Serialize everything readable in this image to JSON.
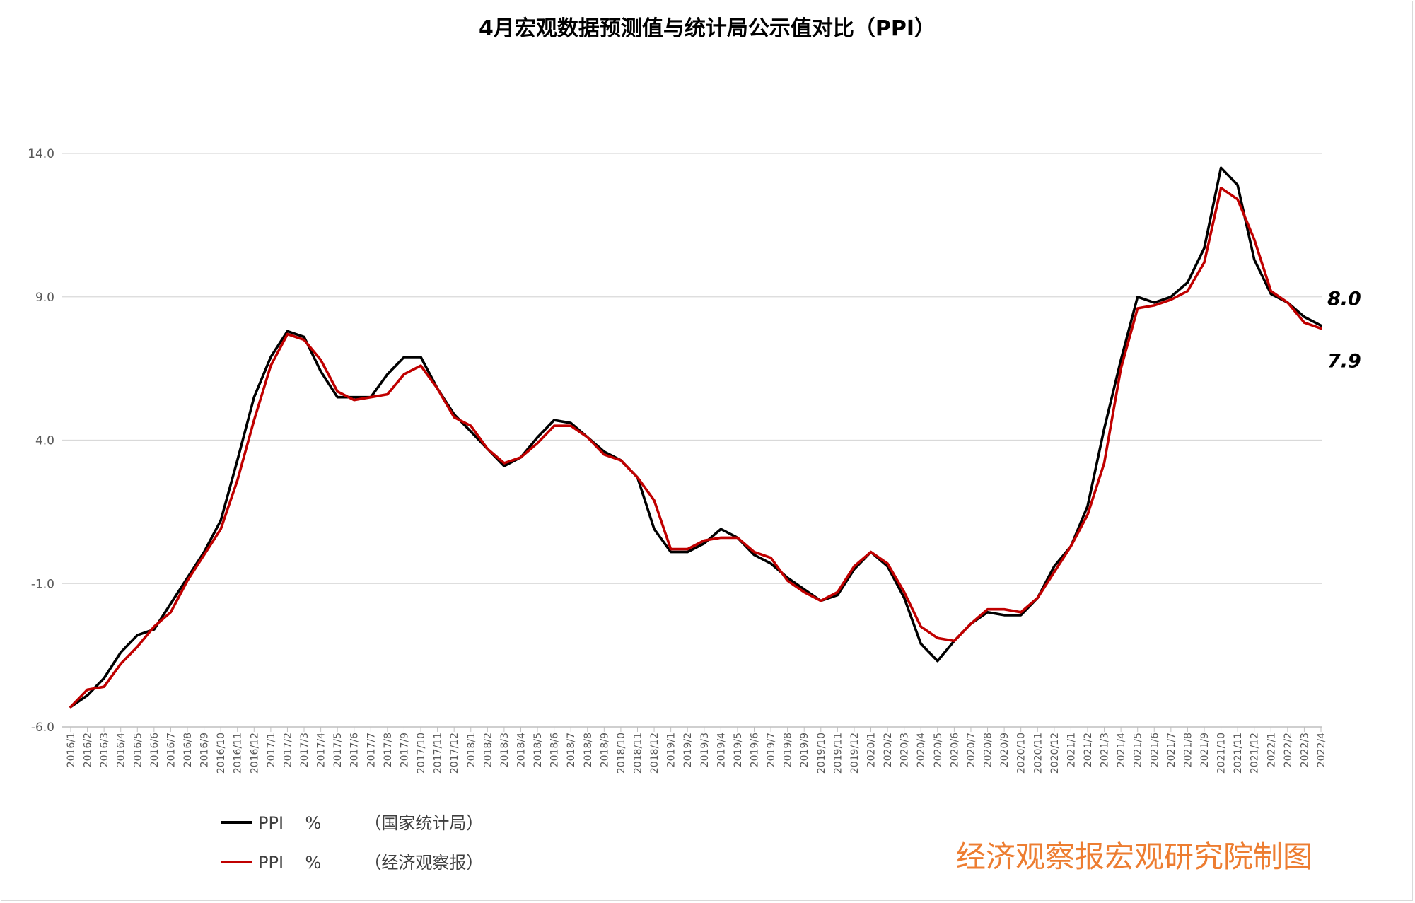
{
  "chart_data": {
    "type": "line",
    "title": "4月宏观数据预测值与统计局公示值对比（PPI）",
    "ylim": [
      -6,
      14
    ],
    "yticks": [
      "14.0",
      "9.0",
      "4.0",
      "-1.0",
      "-6.0"
    ],
    "grid": true,
    "legend_position": "bottom-left",
    "x": [
      "2016/1",
      "2016/2",
      "2016/3",
      "2016/4",
      "2016/5",
      "2016/6",
      "2016/7",
      "2016/8",
      "2016/9",
      "2016/10",
      "2016/11",
      "2016/12",
      "2017/1",
      "2017/2",
      "2017/3",
      "2017/4",
      "2017/5",
      "2017/6",
      "2017/7",
      "2017/8",
      "2017/9",
      "2017/10",
      "2017/11",
      "2017/12",
      "2018/1",
      "2018/2",
      "2018/3",
      "2018/4",
      "2018/5",
      "2018/6",
      "2018/7",
      "2018/8",
      "2018/9",
      "2018/10",
      "2018/11",
      "2018/12",
      "2019/1",
      "2019/2",
      "2019/3",
      "2019/4",
      "2019/5",
      "2019/6",
      "2019/7",
      "2019/8",
      "2019/9",
      "2019/10",
      "2019/11",
      "2019/12",
      "2020/1",
      "2020/2",
      "2020/3",
      "2020/4",
      "2020/5",
      "2020/6",
      "2020/7",
      "2020/8",
      "2020/9",
      "2020/10",
      "2020/11",
      "2020/12",
      "2021/1",
      "2021/2",
      "2021/3",
      "2021/4",
      "2021/5",
      "2021/6",
      "2021/7",
      "2021/8",
      "2021/9",
      "2021/10",
      "2021/11",
      "2021/12",
      "2022/1",
      "2022/2",
      "2022/3",
      "2022/4"
    ],
    "series": [
      {
        "name": "PPI    %        （国家统计局）",
        "color": "#000000",
        "values": [
          -5.3,
          -4.9,
          -4.3,
          -3.4,
          -2.8,
          -2.6,
          -1.7,
          -0.8,
          0.1,
          1.2,
          3.3,
          5.5,
          6.9,
          7.8,
          7.6,
          6.4,
          5.5,
          5.5,
          5.5,
          6.3,
          6.9,
          6.9,
          5.8,
          4.9,
          4.3,
          3.7,
          3.1,
          3.4,
          4.1,
          4.7,
          4.6,
          4.1,
          3.6,
          3.3,
          2.7,
          0.9,
          0.1,
          0.1,
          0.4,
          0.9,
          0.6,
          0.0,
          -0.3,
          -0.8,
          -1.2,
          -1.6,
          -1.4,
          -0.5,
          0.1,
          -0.4,
          -1.5,
          -3.1,
          -3.7,
          -3.0,
          -2.4,
          -2.0,
          -2.1,
          -2.1,
          -1.5,
          -0.4,
          0.3,
          1.7,
          4.4,
          6.8,
          9.0,
          8.8,
          9.0,
          9.5,
          10.7,
          13.5,
          12.9,
          10.3,
          9.1,
          8.8,
          8.3,
          8.0
        ]
      },
      {
        "name": "PPI    %        （经济观察报）",
        "color": "#C00000",
        "values": [
          -5.3,
          -4.7,
          -4.6,
          -3.8,
          -3.2,
          -2.5,
          -2.0,
          -0.9,
          0.0,
          0.9,
          2.6,
          4.7,
          6.6,
          7.7,
          7.5,
          6.8,
          5.7,
          5.4,
          5.5,
          5.6,
          6.3,
          6.6,
          5.8,
          4.8,
          4.5,
          3.7,
          3.2,
          3.4,
          3.9,
          4.5,
          4.5,
          4.1,
          3.5,
          3.3,
          2.7,
          1.9,
          0.2,
          0.2,
          0.5,
          0.6,
          0.6,
          0.1,
          -0.1,
          -0.9,
          -1.3,
          -1.6,
          -1.3,
          -0.4,
          0.1,
          -0.3,
          -1.3,
          -2.5,
          -2.9,
          -3.0,
          -2.4,
          -1.9,
          -1.9,
          -2.0,
          -1.5,
          -0.6,
          0.3,
          1.4,
          3.2,
          6.5,
          8.6,
          8.7,
          8.9,
          9.2,
          10.2,
          12.8,
          12.4,
          11.0,
          9.2,
          8.8,
          8.1,
          7.9
        ]
      }
    ],
    "annotations": [
      {
        "text": "8.0",
        "series": 0,
        "index": 75
      },
      {
        "text": "7.9",
        "series": 1,
        "index": 75
      }
    ]
  },
  "watermark": "经济观察报宏观研究院制图"
}
